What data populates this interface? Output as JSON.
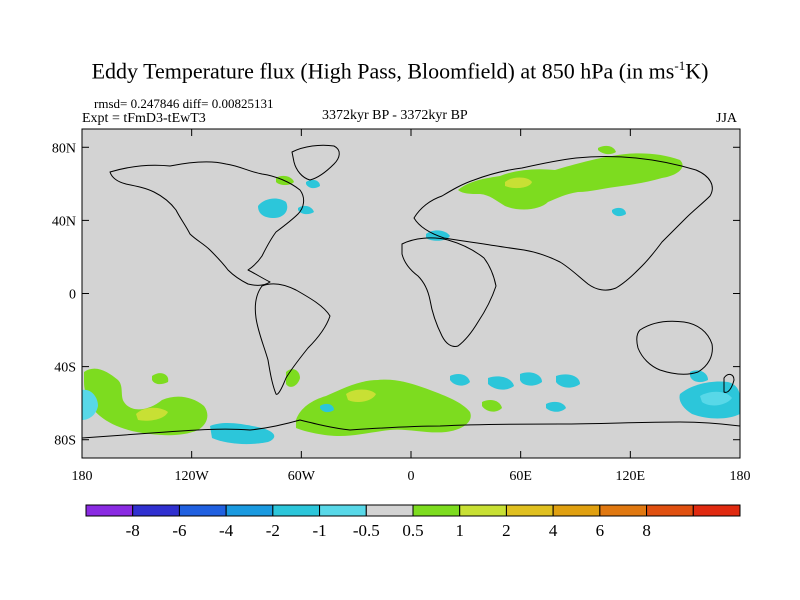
{
  "title_main": "Eddy Temperature flux (High Pass, Bloomfield) at 850 hPa (in ms",
  "title_sup": "-1",
  "title_end": "K)",
  "stats": "rmsd= 0.247846 diff= 0.00825131",
  "expt": "Expt = tFmD3-tEwT3",
  "period": "3372kyr BP - 3372kyr BP",
  "season": "JJA",
  "colors": {
    "background_land": "#d3d3d3",
    "green": "#7ddc1f",
    "yellow_green": "#c8e034",
    "cyan": "#2cc6da",
    "light_cyan": "#58d8e8"
  },
  "map": {
    "lat_ticks": [
      {
        "lat": 80,
        "label": "80N"
      },
      {
        "lat": 40,
        "label": "40N"
      },
      {
        "lat": 0,
        "label": "0"
      },
      {
        "lat": -40,
        "label": "40S"
      },
      {
        "lat": -80,
        "label": "80S"
      }
    ],
    "lon_ticks": [
      {
        "lon": -180,
        "label": "180"
      },
      {
        "lon": -120,
        "label": "120W"
      },
      {
        "lon": -60,
        "label": "60W"
      },
      {
        "lon": 0,
        "label": "0"
      },
      {
        "lon": 60,
        "label": "60E"
      },
      {
        "lon": 120,
        "label": "120E"
      },
      {
        "lon": 180,
        "label": "180"
      }
    ]
  },
  "colorbar": {
    "colors": [
      "#8a2be2",
      "#3030d0",
      "#2060e0",
      "#1a9ae0",
      "#2cc6da",
      "#58d8e8",
      "#d3d3d3",
      "#7ddc1f",
      "#c8e034",
      "#e0c020",
      "#e0a010",
      "#e07810",
      "#e05010",
      "#e02a10"
    ],
    "labels": [
      "-8",
      "-6",
      "-4",
      "-2",
      "-1",
      "-0.5",
      "0.5",
      "1",
      "2",
      "4",
      "6",
      "8"
    ]
  }
}
